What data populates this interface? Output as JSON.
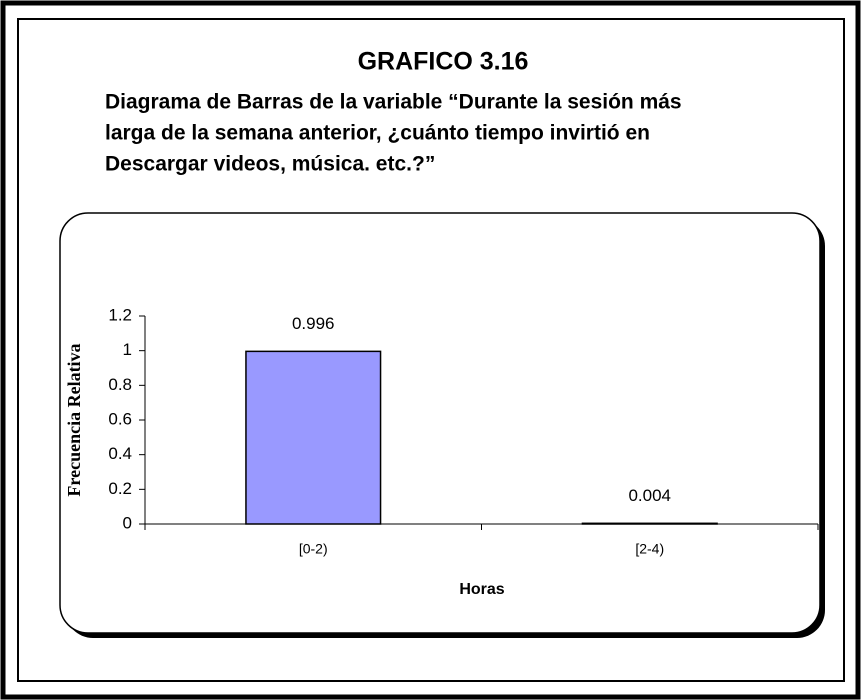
{
  "chart_data": {
    "type": "bar",
    "title": "GRAFICO 3.16",
    "subtitle_lines": [
      "Diagrama de Barras de la variable “Durante la sesión más",
      "larga de la semana anterior, ¿cuánto tiempo invirtió en",
      "Descargar videos, música. etc.?”"
    ],
    "x_label": "Horas",
    "y_label": "Frecuencia Relativa",
    "categories": [
      "[0-2)",
      "[2-4)"
    ],
    "values": [
      0.996,
      0.004
    ],
    "color": "#9999ff",
    "ylim": [
      0,
      1.2
    ],
    "yticks": [
      0,
      0.2,
      0.4,
      0.6,
      0.8,
      1,
      1.2
    ],
    "grid": false
  }
}
